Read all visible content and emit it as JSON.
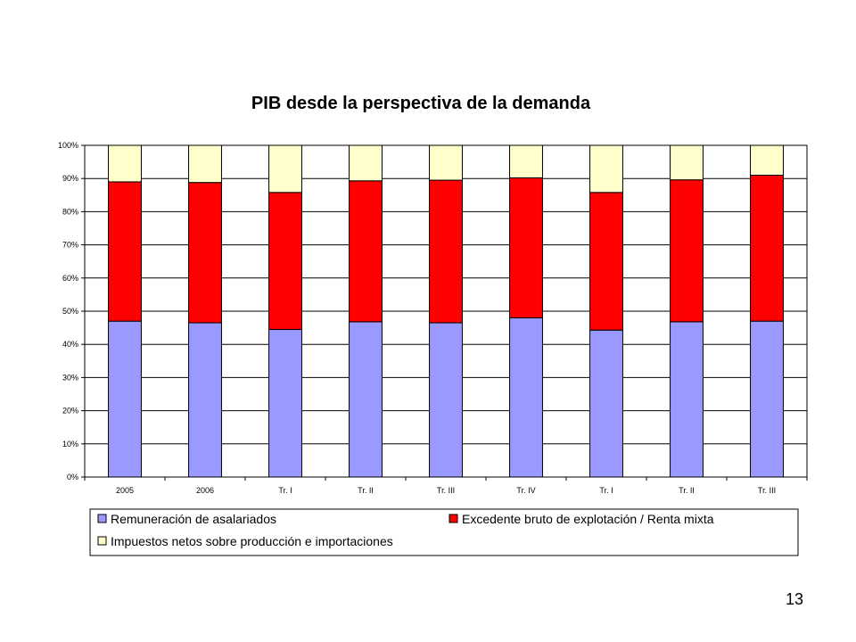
{
  "page_number": "13",
  "chart_data": {
    "type": "bar",
    "stacked": true,
    "percent": true,
    "title": "PIB desde la perspectiva de la demanda",
    "xlabel": "",
    "ylabel": "",
    "ylim": [
      0,
      100
    ],
    "y_ticks": [
      "0%",
      "10%",
      "20%",
      "30%",
      "40%",
      "50%",
      "60%",
      "70%",
      "80%",
      "90%",
      "100%"
    ],
    "categories": [
      "2005",
      "2006",
      "Tr. I",
      "Tr. II",
      "Tr. III",
      "Tr. IV",
      "Tr. I",
      "Tr. II",
      "Tr. III"
    ],
    "series": [
      {
        "name": "Remuneración de asalariados",
        "color": "#9999FF",
        "values": [
          47,
          46.5,
          44.5,
          46.8,
          46.5,
          48,
          44.3,
          46.8,
          47
        ]
      },
      {
        "name": "Excedente bruto de explotación / Renta mixta",
        "color": "#FF0000",
        "values": [
          42,
          42.3,
          41.3,
          42.5,
          43,
          42.2,
          41.5,
          42.8,
          44
        ]
      },
      {
        "name": "Impuestos netos sobre producción e importaciones",
        "color": "#FFFFCC",
        "values": [
          11,
          11.2,
          14.2,
          10.7,
          10.5,
          9.8,
          14.2,
          10.4,
          9
        ]
      }
    ],
    "grid": true,
    "legend_position": "bottom"
  }
}
